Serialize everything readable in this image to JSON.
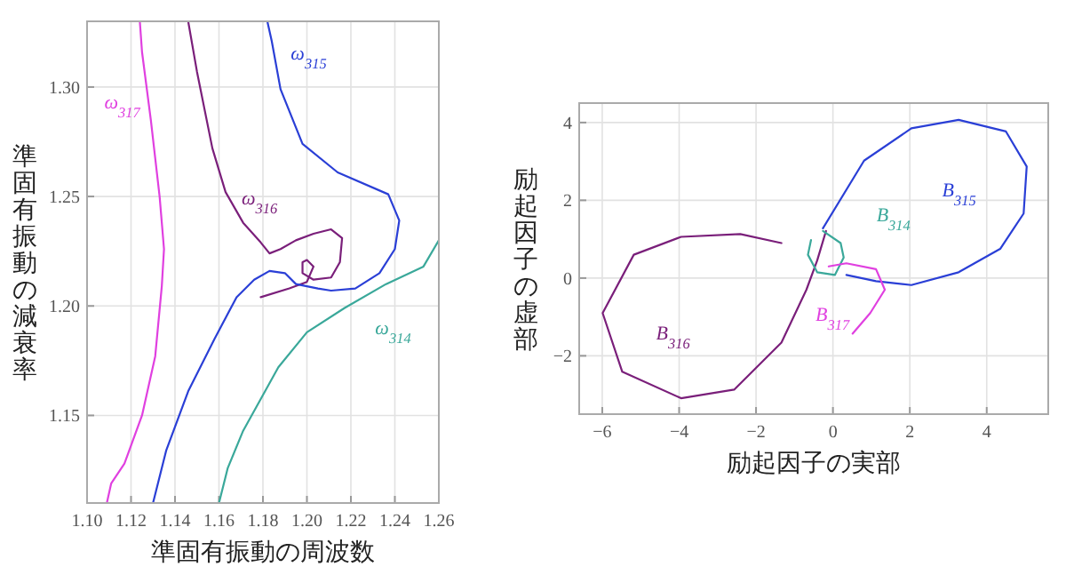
{
  "chart_data": [
    {
      "type": "line",
      "xlabel": "準固有振動の周波数",
      "ylabel": "準固有振動の減衰率",
      "xlim": [
        1.1,
        1.26
      ],
      "ylim": [
        1.11,
        1.33
      ],
      "xticks": [
        {
          "value": 1.1,
          "label": "1.10"
        },
        1.12,
        1.14,
        1.16,
        1.18,
        {
          "value": 1.2,
          "label": "1.20"
        },
        1.22,
        1.24,
        1.26
      ],
      "yticks": [
        1.15,
        {
          "value": 1.2,
          "label": "1.20"
        },
        1.25,
        {
          "value": 1.3,
          "label": "1.30"
        }
      ],
      "grid": true,
      "series": [
        {
          "name": "ω$_{317}$",
          "color": "#e040e0",
          "x": [
            1.124,
            1.125,
            1.129,
            1.133,
            1.135,
            1.134,
            1.131,
            1.125,
            1.117,
            1.111,
            1.109
          ],
          "values": [
            1.33,
            1.316,
            1.285,
            1.25,
            1.226,
            1.209,
            1.177,
            1.15,
            1.128,
            1.119,
            1.11
          ]
        },
        {
          "name": "ω$_{316}$",
          "color": "#7a1f7a",
          "x": [
            1.146,
            1.15,
            1.157,
            1.163,
            1.171,
            1.179,
            1.183,
            1.188,
            1.195,
            1.203,
            1.211,
            1.216,
            1.215,
            1.211,
            1.203,
            1.198,
            1.198,
            1.2,
            1.203,
            1.2,
            1.192,
            1.179
          ],
          "values": [
            1.33,
            1.307,
            1.272,
            1.252,
            1.238,
            1.229,
            1.224,
            1.226,
            1.23,
            1.233,
            1.235,
            1.231,
            1.22,
            1.213,
            1.212,
            1.215,
            1.22,
            1.221,
            1.218,
            1.211,
            1.208,
            1.204
          ]
        },
        {
          "name": "ω$_{315}$",
          "color": "#2a3fd6",
          "x": [
            1.182,
            1.184,
            1.188,
            1.198,
            1.214,
            1.237,
            1.242,
            1.24,
            1.233,
            1.222,
            1.211,
            1.205,
            1.195,
            1.19,
            1.183,
            1.176,
            1.168,
            1.158,
            1.146,
            1.136,
            1.13
          ],
          "values": [
            1.33,
            1.321,
            1.299,
            1.274,
            1.261,
            1.251,
            1.239,
            1.226,
            1.215,
            1.208,
            1.207,
            1.208,
            1.21,
            1.215,
            1.216,
            1.212,
            1.204,
            1.185,
            1.161,
            1.134,
            1.11
          ]
        },
        {
          "name": "ω$_{314}$",
          "color": "#3aa89a",
          "x": [
            1.26,
            1.253,
            1.236,
            1.217,
            1.2,
            1.187,
            1.171,
            1.164,
            1.16
          ],
          "values": [
            1.23,
            1.218,
            1.21,
            1.199,
            1.188,
            1.172,
            1.143,
            1.126,
            1.11
          ]
        }
      ]
    },
    {
      "type": "line",
      "xlabel": "励起因子の実部",
      "ylabel": "励起因子の虚部",
      "xlim": [
        -6.6,
        5.6
      ],
      "ylim": [
        -3.5,
        4.5
      ],
      "xticks": [
        -6,
        -4,
        -2,
        0,
        2,
        4
      ],
      "yticks": [
        -2,
        0,
        2,
        4
      ],
      "grid": true,
      "series": [
        {
          "name": "B$_{315}$",
          "color": "#2a3fd6",
          "x": [
            -0.26,
            0.81,
            2.04,
            3.27,
            4.5,
            5.04,
            4.96,
            4.35,
            3.27,
            2.04,
            1.12,
            0.35
          ],
          "values": [
            1.28,
            3.02,
            3.85,
            4.07,
            3.77,
            2.87,
            1.66,
            0.75,
            0.15,
            -0.18,
            -0.08,
            0.08
          ]
        },
        {
          "name": "B$_{316}$",
          "color": "#7a1f7a",
          "x": [
            -1.34,
            -2.41,
            -3.95,
            -5.18,
            -5.99,
            -5.48,
            -3.95,
            -2.57,
            -1.34,
            -0.69,
            -0.41,
            -0.18
          ],
          "values": [
            0.9,
            1.13,
            1.06,
            0.6,
            -0.9,
            -2.41,
            -3.09,
            -2.87,
            -1.66,
            -0.3,
            0.45,
            1.21
          ]
        },
        {
          "name": "B$_{314}$",
          "color": "#3aa89a",
          "x": [
            -0.26,
            0.2,
            0.28,
            0.05,
            -0.41,
            -0.65,
            -0.57
          ],
          "values": [
            1.21,
            0.9,
            0.53,
            0.08,
            0.15,
            0.6,
            0.98
          ]
        },
        {
          "name": "B$_{317}$",
          "color": "#e040e0",
          "x": [
            -0.11,
            0.35,
            1.12,
            1.35,
            0.97,
            0.51
          ],
          "values": [
            0.3,
            0.38,
            0.23,
            -0.3,
            -0.9,
            -1.43
          ]
        }
      ]
    }
  ]
}
